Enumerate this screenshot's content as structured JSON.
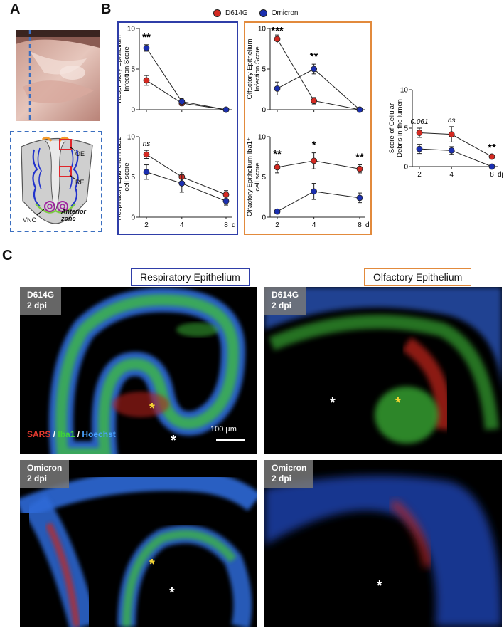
{
  "panels": {
    "A": "A",
    "B": "B",
    "C": "C"
  },
  "legend": [
    {
      "label": "D614G",
      "color": "#d42a22"
    },
    {
      "label": "Omicron",
      "color": "#1b2fb0"
    }
  ],
  "colors": {
    "d614g": "#d42a22",
    "omicron": "#1b2fb0",
    "resp_box": "#2f3ea8",
    "olf_box": "#e28a3c",
    "dashed": "#3b6fc0"
  },
  "schematic": {
    "labels": [
      "OE",
      "RE",
      "VNO"
    ],
    "zone": "Anterior zone"
  },
  "chart_data": [
    {
      "id": "re-infection",
      "type": "line",
      "ylabel": "Respiratory Epithelium Infection Score",
      "ylim": [
        0,
        10
      ],
      "yticks": [
        0,
        5,
        10
      ],
      "x": [
        2,
        4,
        8
      ],
      "xticks": [],
      "xunit": "",
      "series": [
        {
          "name": "D614G",
          "values": [
            3.6,
            0.8,
            0.0
          ],
          "err": [
            0.6,
            0.3,
            0.1
          ]
        },
        {
          "name": "Omicron",
          "values": [
            7.6,
            1.0,
            0.0
          ],
          "err": [
            0.4,
            0.4,
            0.1
          ]
        }
      ],
      "annotations": [
        {
          "x": 2,
          "text": "**",
          "italic": false
        },
        {
          "x": 4,
          "text": "",
          "italic": false
        },
        {
          "x": 8,
          "text": "",
          "italic": false
        }
      ]
    },
    {
      "id": "re-iba1",
      "type": "line",
      "ylabel": "Respiratory Epithelium Iba1⁺ cell score",
      "ylim": [
        0,
        10
      ],
      "yticks": [
        0,
        5,
        10
      ],
      "x": [
        2,
        4,
        8
      ],
      "xticks": [
        "2",
        "4",
        "8"
      ],
      "xunit": "dpi",
      "series": [
        {
          "name": "D614G",
          "values": [
            7.8,
            5.0,
            2.8
          ],
          "err": [
            0.5,
            0.6,
            0.5
          ]
        },
        {
          "name": "Omicron",
          "values": [
            5.6,
            4.2,
            2.0
          ],
          "err": [
            0.9,
            1.1,
            0.5
          ]
        }
      ],
      "annotations": [
        {
          "x": 2,
          "text": "ns",
          "italic": true
        },
        {
          "x": 4,
          "text": "",
          "italic": false
        },
        {
          "x": 8,
          "text": "",
          "italic": false
        }
      ]
    },
    {
      "id": "oe-infection",
      "type": "line",
      "ylabel": "Olfactory Epithelium Infection Score",
      "ylim": [
        0,
        10
      ],
      "yticks": [
        0,
        5,
        10
      ],
      "x": [
        2,
        4,
        8
      ],
      "xticks": [],
      "xunit": "",
      "series": [
        {
          "name": "D614G",
          "values": [
            8.7,
            1.1,
            0.0
          ],
          "err": [
            0.5,
            0.4,
            0.1
          ]
        },
        {
          "name": "Omicron",
          "values": [
            2.6,
            5.0,
            0.0
          ],
          "err": [
            0.8,
            0.6,
            0.1
          ]
        }
      ],
      "annotations": [
        {
          "x": 2,
          "text": "***",
          "italic": false
        },
        {
          "x": 4,
          "text": "**",
          "italic": false
        },
        {
          "x": 8,
          "text": "",
          "italic": false
        }
      ]
    },
    {
      "id": "oe-iba1",
      "type": "line",
      "ylabel": "Olfactory Epithelium Iba1⁺ cell score",
      "ylim": [
        0,
        10
      ],
      "yticks": [
        0,
        5,
        10
      ],
      "x": [
        2,
        4,
        8
      ],
      "xticks": [
        "2",
        "4",
        "8"
      ],
      "xunit": "dpi",
      "series": [
        {
          "name": "D614G",
          "values": [
            6.2,
            7.0,
            6.0
          ],
          "err": [
            0.7,
            1.0,
            0.5
          ]
        },
        {
          "name": "Omicron",
          "values": [
            0.7,
            3.2,
            2.4
          ],
          "err": [
            0.1,
            1.0,
            0.6
          ]
        }
      ],
      "annotations": [
        {
          "x": 2,
          "text": "**",
          "italic": false
        },
        {
          "x": 4,
          "text": "*",
          "italic": false
        },
        {
          "x": 8,
          "text": "**",
          "italic": false
        }
      ]
    },
    {
      "id": "debris",
      "type": "line",
      "ylabel": "Score of Cellular Debris in the lumen",
      "ylim": [
        0,
        10
      ],
      "yticks": [
        0,
        5,
        10
      ],
      "x": [
        2,
        4,
        8
      ],
      "xticks": [
        "2",
        "4",
        "8"
      ],
      "xunit": "dpi",
      "series": [
        {
          "name": "D614G",
          "values": [
            4.4,
            4.2,
            1.3
          ],
          "err": [
            0.6,
            1.0,
            0.2
          ]
        },
        {
          "name": "Omicron",
          "values": [
            2.3,
            2.1,
            0.0
          ],
          "err": [
            0.6,
            0.5,
            0.1
          ]
        }
      ],
      "annotations": [
        {
          "x": 2,
          "text": "0.061",
          "italic": true
        },
        {
          "x": 4,
          "text": "ns",
          "italic": true
        },
        {
          "x": 8,
          "text": "**",
          "italic": false
        }
      ]
    }
  ],
  "section_c": {
    "resp_header": "Respiratory Epithelium",
    "olf_header": "Olfactory Epithelium",
    "tiles": [
      {
        "line1": "D614G",
        "line2": "2 dpi"
      },
      {
        "line1": "D614G",
        "line2": "2 dpi"
      },
      {
        "line1": "Omicron",
        "line2": "2 dpi"
      },
      {
        "line1": "Omicron",
        "line2": "2 dpi"
      }
    ],
    "stain": {
      "sars": "SARS",
      "sep1": " / ",
      "iba1": "Iba1",
      "sep2": " / ",
      "hoechst": "Hoechst"
    },
    "scalebar": "100 µm",
    "asterisk": "*"
  }
}
